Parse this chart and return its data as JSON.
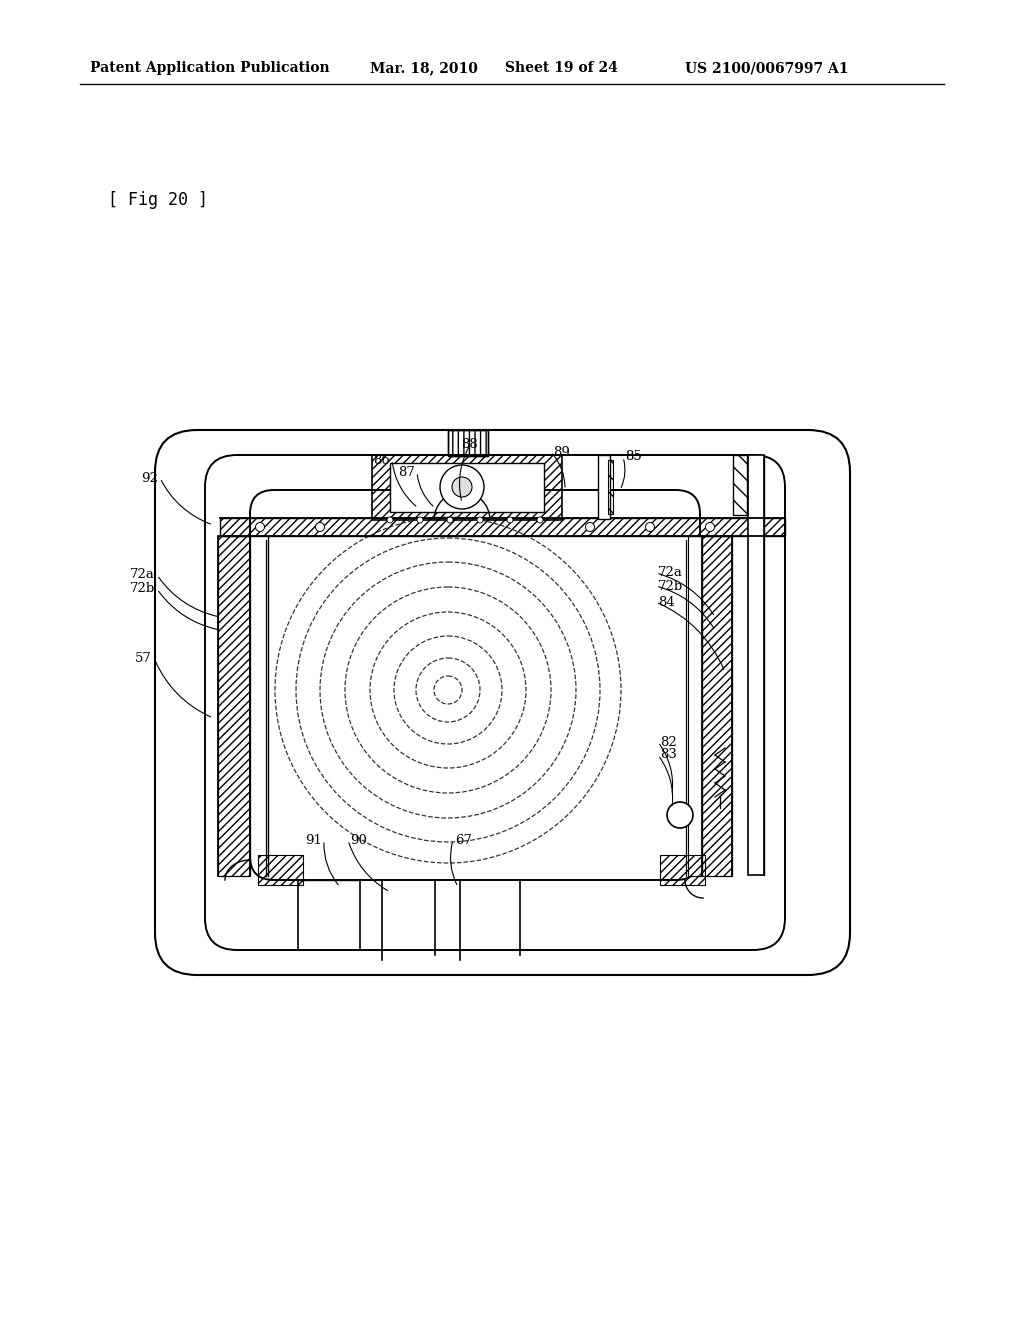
{
  "bg_color": "#ffffff",
  "header_left": "Patent Application Publication",
  "header_date": "Mar. 18, 2010",
  "header_sheet": "Sheet 19 of 24",
  "header_patent": "US 2100/0067997 A1",
  "fig_label": "[ Fig 20 ]",
  "lc": "#000000",
  "annotations": [
    [
      "86",
      390,
      460,
      418,
      508,
      "right"
    ],
    [
      "87",
      415,
      472,
      435,
      508,
      "right"
    ],
    [
      "88",
      470,
      445,
      462,
      503,
      "center"
    ],
    [
      "89",
      553,
      452,
      565,
      490,
      "left"
    ],
    [
      "85",
      625,
      457,
      620,
      490,
      "left"
    ],
    [
      "92",
      158,
      478,
      213,
      525,
      "right"
    ],
    [
      "72a",
      155,
      575,
      220,
      617,
      "right"
    ],
    [
      "72b",
      155,
      589,
      220,
      630,
      "right"
    ],
    [
      "72a",
      658,
      573,
      715,
      617,
      "left"
    ],
    [
      "72b",
      658,
      586,
      715,
      630,
      "left"
    ],
    [
      "84",
      658,
      602,
      725,
      672,
      "left"
    ],
    [
      "57",
      152,
      658,
      213,
      718,
      "right"
    ],
    [
      "82",
      660,
      742,
      672,
      795,
      "left"
    ],
    [
      "83",
      660,
      755,
      672,
      808,
      "left"
    ],
    [
      "91",
      322,
      840,
      340,
      887,
      "right"
    ],
    [
      "90",
      350,
      840,
      390,
      892,
      "left"
    ],
    [
      "67",
      455,
      840,
      458,
      887,
      "left"
    ]
  ]
}
